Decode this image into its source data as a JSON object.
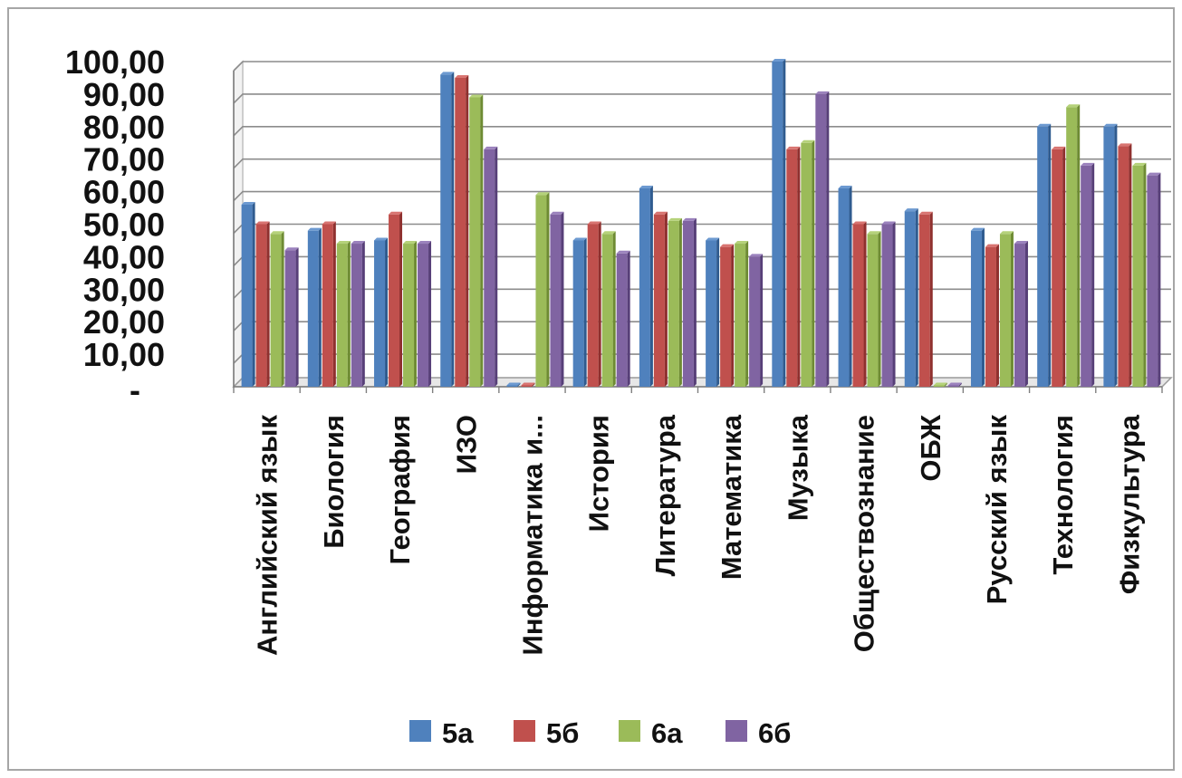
{
  "chart_data": {
    "type": "bar",
    "categories": [
      "Английский язык",
      "Биология",
      "География",
      "ИЗО",
      "Информатика и...",
      "История",
      "Литература",
      "Математика",
      "Музыка",
      "Обществознание",
      "ОБЖ",
      "Русский язык",
      "Технология",
      "Физкультура"
    ],
    "series": [
      {
        "name": "5а",
        "color": "#4f81bd",
        "values": [
          56,
          48,
          45,
          96,
          0,
          45,
          61,
          45,
          100,
          61,
          54,
          48,
          80,
          80
        ]
      },
      {
        "name": "5б",
        "color": "#c0504d",
        "values": [
          50,
          50,
          53,
          95,
          0,
          50,
          53,
          43,
          73,
          50,
          53,
          43,
          73,
          74
        ]
      },
      {
        "name": "6а",
        "color": "#9bbb59",
        "values": [
          47,
          44,
          44,
          89,
          59,
          47,
          51,
          44,
          75,
          47,
          0,
          47,
          86,
          68
        ]
      },
      {
        "name": "6б",
        "color": "#8064a2",
        "values": [
          42,
          44,
          44,
          73,
          53,
          41,
          51,
          40,
          90,
          50,
          0,
          44,
          68,
          65
        ]
      }
    ],
    "y_tick_labels": [
      "-",
      "10,00",
      "20,00",
      "30,00",
      "40,00",
      "50,00",
      "60,00",
      "70,00",
      "80,00",
      "90,00",
      "100,00"
    ],
    "ylim": [
      0,
      100
    ],
    "grid": true,
    "legend": "bottom"
  }
}
